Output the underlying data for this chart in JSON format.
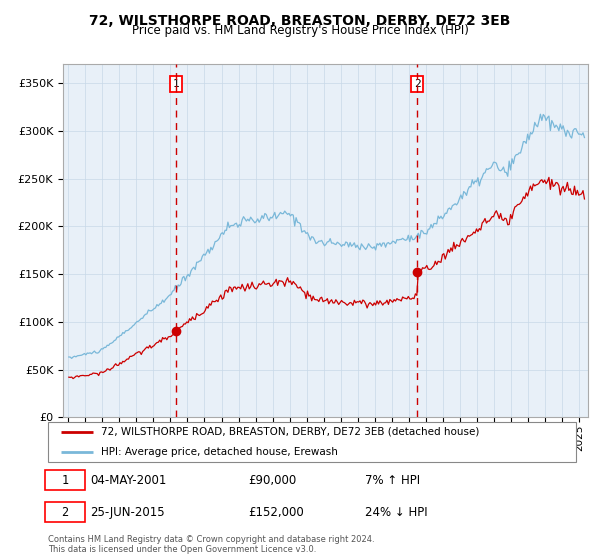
{
  "title1": "72, WILSTHORPE ROAD, BREASTON, DERBY, DE72 3EB",
  "title2": "Price paid vs. HM Land Registry's House Price Index (HPI)",
  "ylabel_ticks": [
    "£0",
    "£50K",
    "£100K",
    "£150K",
    "£200K",
    "£250K",
    "£300K",
    "£350K"
  ],
  "ytick_vals": [
    0,
    50000,
    100000,
    150000,
    200000,
    250000,
    300000,
    350000
  ],
  "ylim": [
    0,
    370000
  ],
  "xlim_start": 1994.7,
  "xlim_end": 2025.5,
  "transaction1_x": 2001.34,
  "transaction1_y": 90000,
  "transaction2_x": 2015.48,
  "transaction2_y": 152000,
  "legend_line1": "72, WILSTHORPE ROAD, BREASTON, DERBY, DE72 3EB (detached house)",
  "legend_line2": "HPI: Average price, detached house, Erewash",
  "hpi_color": "#7ab8d9",
  "price_color": "#cc0000",
  "bg_color": "#e8f0f8",
  "grid_color": "#c8d8e8",
  "vline_color": "#cc0000",
  "footer": "Contains HM Land Registry data © Crown copyright and database right 2024.\nThis data is licensed under the Open Government Licence v3.0."
}
